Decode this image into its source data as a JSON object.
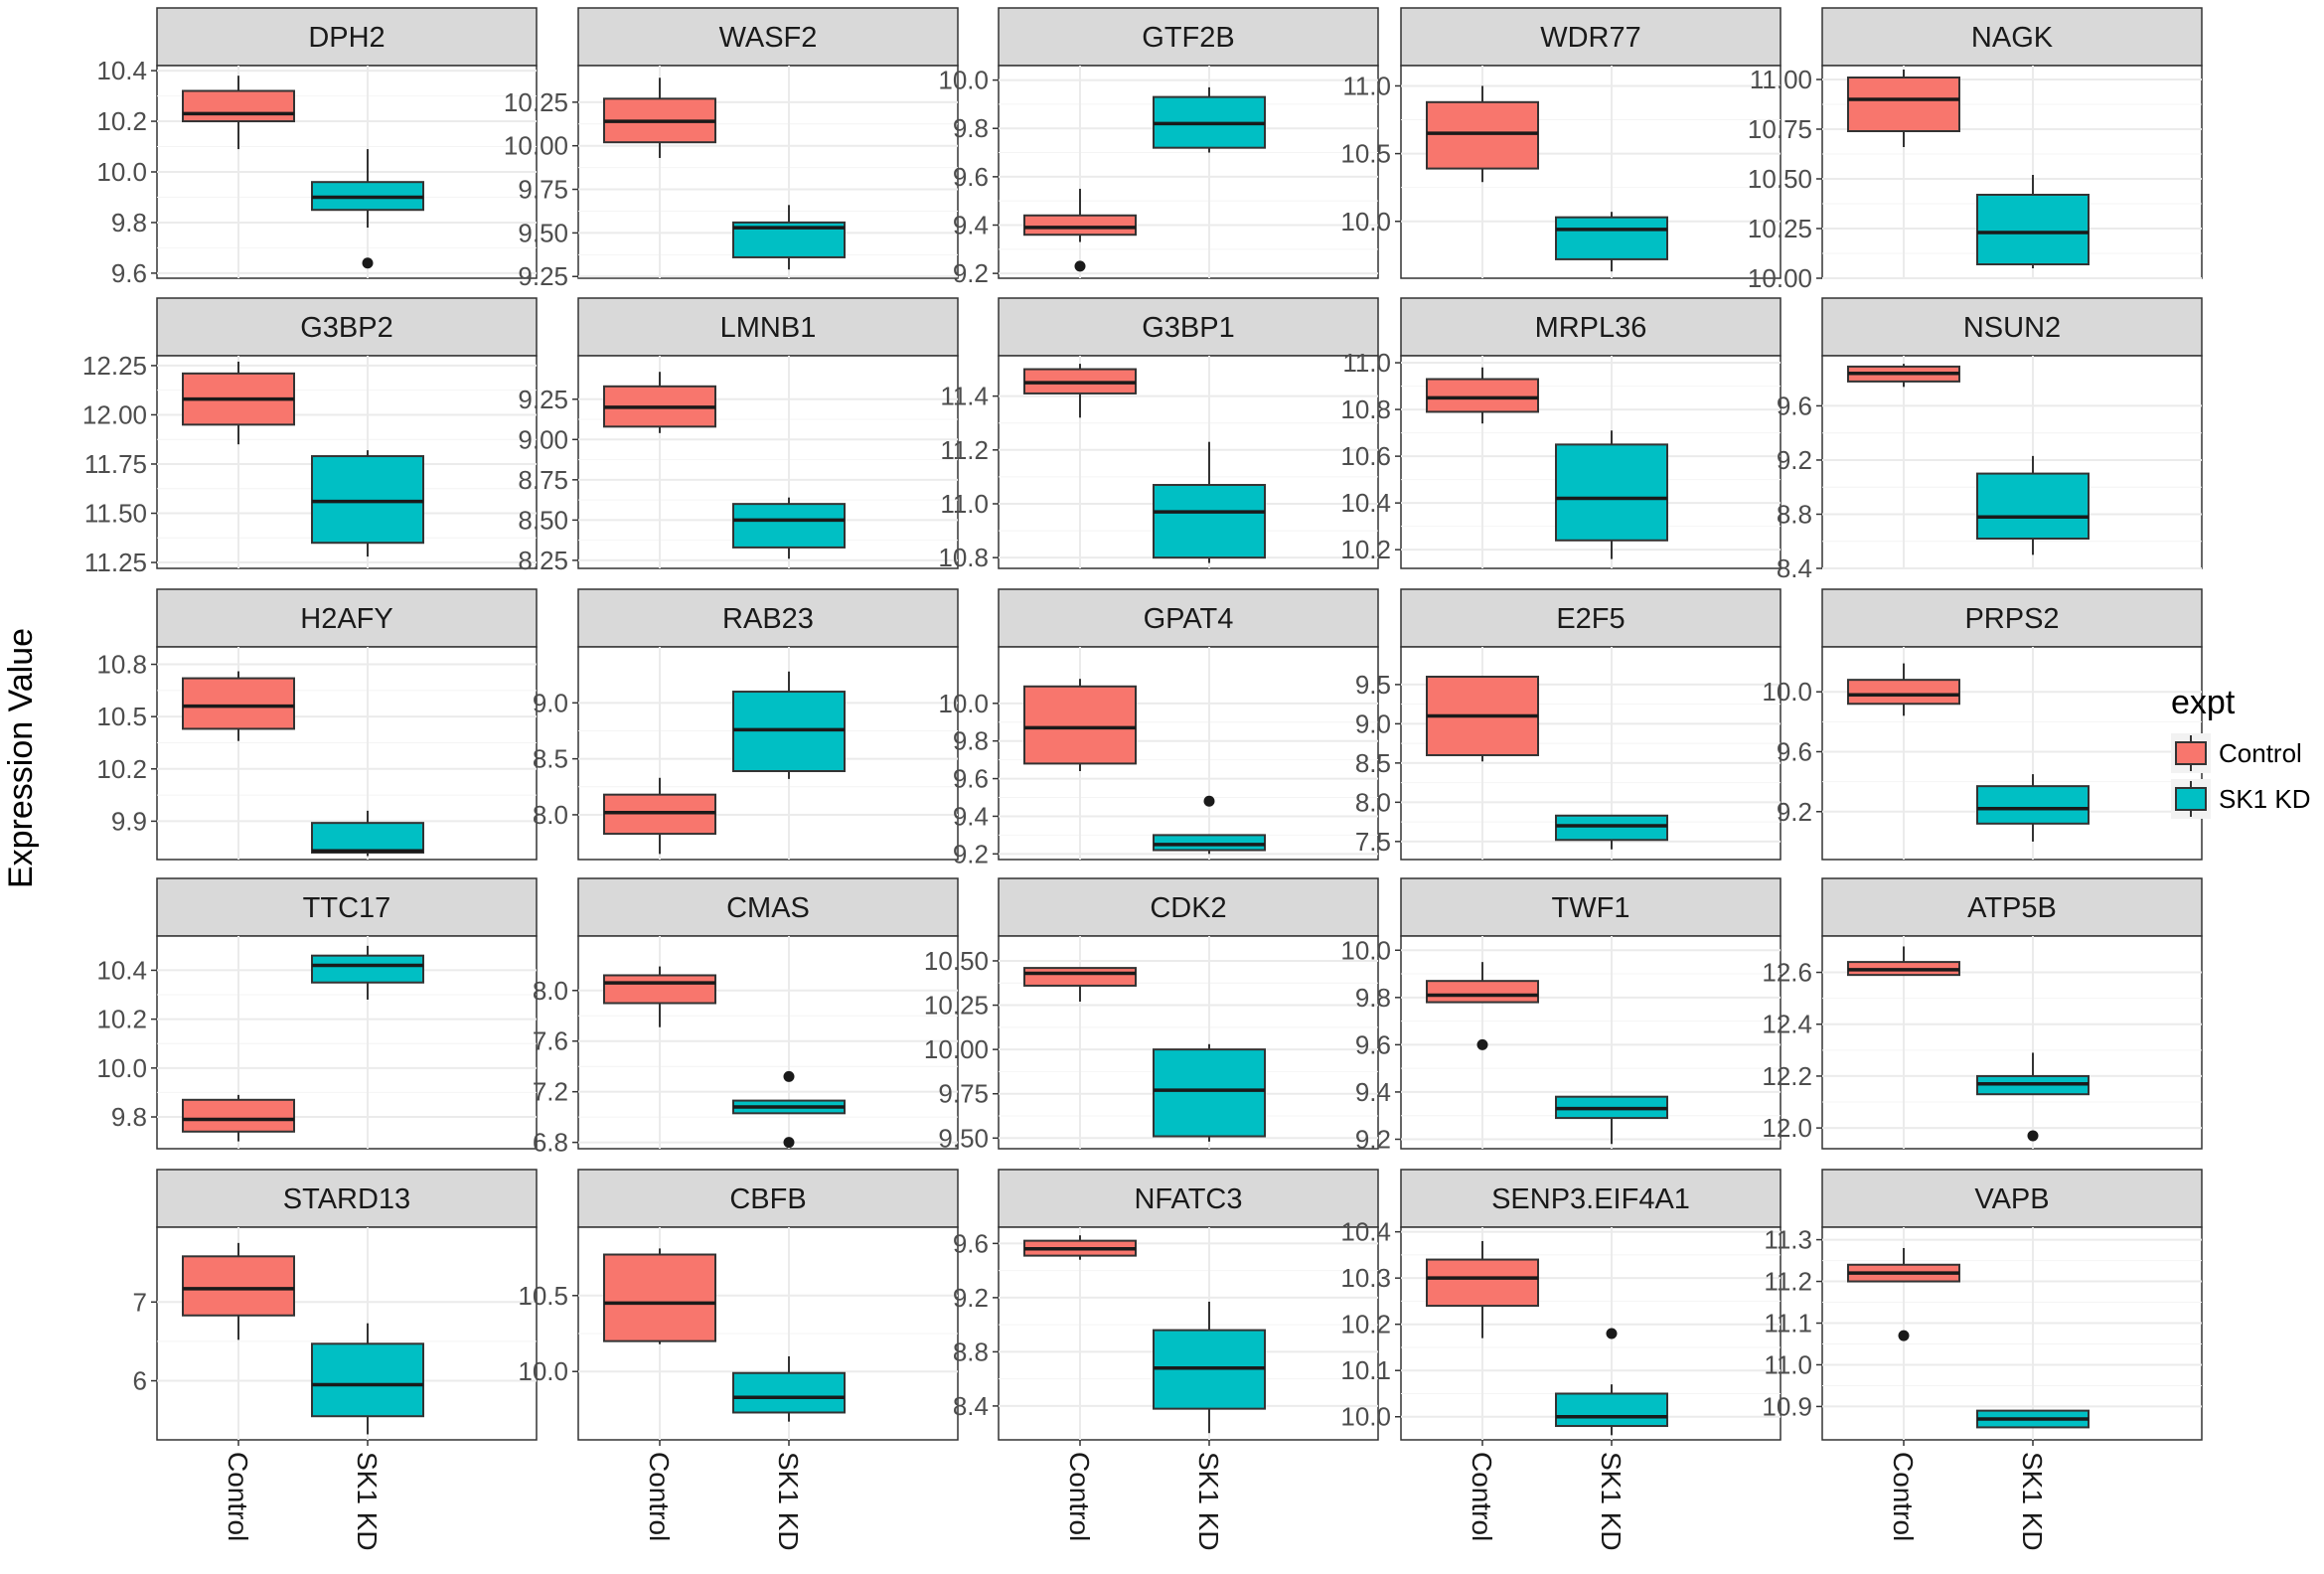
{
  "chart_data": {
    "type": "boxplot",
    "ylabel": "Expression Value",
    "categories": [
      "Control",
      "SK1 KD"
    ],
    "legend": {
      "title": "expt",
      "position": "right",
      "entries": [
        {
          "name": "Control",
          "color": "#F8766D"
        },
        {
          "name": "SK1 KD",
          "color": "#00BFC4"
        }
      ]
    },
    "panels": [
      {
        "gene": "DPH2",
        "ylim": [
          9.58,
          10.42
        ],
        "ticks": [
          9.6,
          9.8,
          10.0,
          10.2,
          10.4
        ],
        "tick_labels": [
          "9.6",
          "9.8",
          "10.0",
          "10.2",
          "10.4"
        ],
        "boxes": [
          {
            "group": "Control",
            "min": 10.09,
            "q1": 10.2,
            "median": 10.23,
            "q3": 10.32,
            "max": 10.38,
            "outliers": []
          },
          {
            "group": "SK1 KD",
            "min": 9.78,
            "q1": 9.85,
            "median": 9.9,
            "q3": 9.96,
            "max": 10.09,
            "outliers": [
              9.64
            ]
          }
        ]
      },
      {
        "gene": "WASF2",
        "ylim": [
          9.24,
          10.46
        ],
        "ticks": [
          9.25,
          9.5,
          9.75,
          10.0,
          10.25
        ],
        "tick_labels": [
          "9.25",
          "9.50",
          "9.75",
          "10.00",
          "10.25"
        ],
        "boxes": [
          {
            "group": "Control",
            "min": 9.93,
            "q1": 10.02,
            "median": 10.14,
            "q3": 10.27,
            "max": 10.39,
            "outliers": []
          },
          {
            "group": "SK1 KD",
            "min": 9.29,
            "q1": 9.36,
            "median": 9.53,
            "q3": 9.56,
            "max": 9.66,
            "outliers": []
          }
        ]
      },
      {
        "gene": "GTF2B",
        "ylim": [
          9.18,
          10.06
        ],
        "ticks": [
          9.2,
          9.4,
          9.6,
          9.8,
          10.0
        ],
        "tick_labels": [
          "9.2",
          "9.4",
          "9.6",
          "9.8",
          "10.0"
        ],
        "boxes": [
          {
            "group": "Control",
            "min": 9.33,
            "q1": 9.36,
            "median": 9.39,
            "q3": 9.44,
            "max": 9.55,
            "outliers": [
              9.23
            ]
          },
          {
            "group": "SK1 KD",
            "min": 9.7,
            "q1": 9.72,
            "median": 9.82,
            "q3": 9.93,
            "max": 9.97,
            "outliers": []
          }
        ]
      },
      {
        "gene": "WDR77",
        "ylim": [
          9.58,
          11.15
        ],
        "ticks": [
          10.0,
          10.5,
          11.0
        ],
        "tick_labels": [
          "10.0",
          "10.5",
          "11.0"
        ],
        "boxes": [
          {
            "group": "Control",
            "min": 10.29,
            "q1": 10.39,
            "median": 10.65,
            "q3": 10.88,
            "max": 11.0,
            "outliers": []
          },
          {
            "group": "SK1 KD",
            "min": 9.63,
            "q1": 9.72,
            "median": 9.94,
            "q3": 10.03,
            "max": 10.07,
            "outliers": []
          }
        ]
      },
      {
        "gene": "NAGK",
        "ylim": [
          10.0,
          11.07
        ],
        "ticks": [
          10.0,
          10.25,
          10.5,
          10.75,
          11.0
        ],
        "tick_labels": [
          "10.00",
          "10.25",
          "10.50",
          "10.75",
          "11.00"
        ],
        "boxes": [
          {
            "group": "Control",
            "min": 10.66,
            "q1": 10.74,
            "median": 10.9,
            "q3": 11.01,
            "max": 11.05,
            "outliers": []
          },
          {
            "group": "SK1 KD",
            "min": 10.05,
            "q1": 10.07,
            "median": 10.23,
            "q3": 10.42,
            "max": 10.52,
            "outliers": []
          }
        ]
      },
      {
        "gene": "G3BP2",
        "ylim": [
          11.22,
          12.3
        ],
        "ticks": [
          11.25,
          11.5,
          11.75,
          12.0,
          12.25
        ],
        "tick_labels": [
          "11.25",
          "11.50",
          "11.75",
          "12.00",
          "12.25"
        ],
        "boxes": [
          {
            "group": "Control",
            "min": 11.85,
            "q1": 11.95,
            "median": 12.08,
            "q3": 12.21,
            "max": 12.27,
            "outliers": []
          },
          {
            "group": "SK1 KD",
            "min": 11.28,
            "q1": 11.35,
            "median": 11.56,
            "q3": 11.79,
            "max": 11.82,
            "outliers": []
          }
        ]
      },
      {
        "gene": "LMNB1",
        "ylim": [
          8.2,
          9.52
        ],
        "ticks": [
          8.25,
          8.5,
          8.75,
          9.0,
          9.25
        ],
        "tick_labels": [
          "8.25",
          "8.50",
          "8.75",
          "9.00",
          "9.25"
        ],
        "boxes": [
          {
            "group": "Control",
            "min": 9.04,
            "q1": 9.08,
            "median": 9.2,
            "q3": 9.33,
            "max": 9.42,
            "outliers": []
          },
          {
            "group": "SK1 KD",
            "min": 8.26,
            "q1": 8.33,
            "median": 8.5,
            "q3": 8.6,
            "max": 8.64,
            "outliers": []
          }
        ]
      },
      {
        "gene": "G3BP1",
        "ylim": [
          10.76,
          11.55
        ],
        "ticks": [
          10.8,
          11.0,
          11.2,
          11.4
        ],
        "tick_labels": [
          "10.8",
          "11.0",
          "11.2",
          "11.4"
        ],
        "boxes": [
          {
            "group": "Control",
            "min": 11.32,
            "q1": 11.41,
            "median": 11.45,
            "q3": 11.5,
            "max": 11.52,
            "outliers": []
          },
          {
            "group": "SK1 KD",
            "min": 10.78,
            "q1": 10.8,
            "median": 10.97,
            "q3": 11.07,
            "max": 11.23,
            "outliers": []
          }
        ]
      },
      {
        "gene": "MRPL36",
        "ylim": [
          10.12,
          11.03
        ],
        "ticks": [
          10.2,
          10.4,
          10.6,
          10.8,
          11.0
        ],
        "tick_labels": [
          "10.2",
          "10.4",
          "10.6",
          "10.8",
          "11.0"
        ],
        "boxes": [
          {
            "group": "Control",
            "min": 10.74,
            "q1": 10.79,
            "median": 10.85,
            "q3": 10.93,
            "max": 10.98,
            "outliers": []
          },
          {
            "group": "SK1 KD",
            "min": 10.16,
            "q1": 10.24,
            "median": 10.42,
            "q3": 10.65,
            "max": 10.71,
            "outliers": []
          }
        ]
      },
      {
        "gene": "NSUN2",
        "ylim": [
          8.4,
          9.97
        ],
        "ticks": [
          8.4,
          8.8,
          9.2,
          9.6
        ],
        "tick_labels": [
          "8.4",
          "8.8",
          "9.2",
          "9.6"
        ],
        "boxes": [
          {
            "group": "Control",
            "min": 9.74,
            "q1": 9.78,
            "median": 9.84,
            "q3": 9.89,
            "max": 9.91,
            "outliers": []
          },
          {
            "group": "SK1 KD",
            "min": 8.5,
            "q1": 8.62,
            "median": 8.78,
            "q3": 9.1,
            "max": 9.23,
            "outliers": []
          }
        ]
      },
      {
        "gene": "H2AFY",
        "ylim": [
          9.68,
          10.9
        ],
        "ticks": [
          9.9,
          10.2,
          10.5,
          10.8
        ],
        "tick_labels": [
          "9.9",
          "10.2",
          "10.5",
          "10.8"
        ],
        "boxes": [
          {
            "group": "Control",
            "min": 10.36,
            "q1": 10.43,
            "median": 10.56,
            "q3": 10.72,
            "max": 10.76,
            "outliers": []
          },
          {
            "group": "SK1 KD",
            "min": 9.7,
            "q1": 9.72,
            "median": 9.73,
            "q3": 9.89,
            "max": 9.96,
            "outliers": []
          }
        ]
      },
      {
        "gene": "RAB23",
        "ylim": [
          7.6,
          9.5
        ],
        "ticks": [
          8.0,
          8.5,
          9.0
        ],
        "tick_labels": [
          "8.0",
          "8.5",
          "9.0"
        ],
        "boxes": [
          {
            "group": "Control",
            "min": 7.65,
            "q1": 7.83,
            "median": 8.02,
            "q3": 8.18,
            "max": 8.33,
            "outliers": []
          },
          {
            "group": "SK1 KD",
            "min": 8.32,
            "q1": 8.39,
            "median": 8.76,
            "q3": 9.1,
            "max": 9.28,
            "outliers": []
          }
        ]
      },
      {
        "gene": "GPAT4",
        "ylim": [
          9.17,
          10.3
        ],
        "ticks": [
          9.2,
          9.4,
          9.6,
          9.8,
          10.0
        ],
        "tick_labels": [
          "9.2",
          "9.4",
          "9.6",
          "9.8",
          "10.0"
        ],
        "boxes": [
          {
            "group": "Control",
            "min": 9.64,
            "q1": 9.68,
            "median": 9.87,
            "q3": 10.09,
            "max": 10.13,
            "outliers": []
          },
          {
            "group": "SK1 KD",
            "min": 9.2,
            "q1": 9.22,
            "median": 9.25,
            "q3": 9.3,
            "max": 9.3,
            "outliers": [
              9.48
            ]
          }
        ]
      },
      {
        "gene": "E2F5",
        "ylim": [
          7.27,
          9.98
        ],
        "ticks": [
          7.5,
          8.0,
          8.5,
          9.0,
          9.5
        ],
        "tick_labels": [
          "7.5",
          "8.0",
          "8.5",
          "9.0",
          "9.5"
        ],
        "boxes": [
          {
            "group": "Control",
            "min": 8.52,
            "q1": 8.6,
            "median": 9.1,
            "q3": 9.6,
            "max": 9.6,
            "outliers": []
          },
          {
            "group": "SK1 KD",
            "min": 7.4,
            "q1": 7.52,
            "median": 7.7,
            "q3": 7.83,
            "max": 7.83,
            "outliers": []
          }
        ]
      },
      {
        "gene": "PRPS2",
        "ylim": [
          8.88,
          10.3
        ],
        "ticks": [
          9.2,
          9.6,
          10.0
        ],
        "tick_labels": [
          "9.2",
          "9.6",
          "10.0"
        ],
        "boxes": [
          {
            "group": "Control",
            "min": 9.84,
            "q1": 9.92,
            "median": 9.98,
            "q3": 10.08,
            "max": 10.19,
            "outliers": []
          },
          {
            "group": "SK1 KD",
            "min": 9.0,
            "q1": 9.12,
            "median": 9.22,
            "q3": 9.37,
            "max": 9.45,
            "outliers": []
          }
        ]
      },
      {
        "gene": "TTC17",
        "ylim": [
          9.67,
          10.54
        ],
        "ticks": [
          9.8,
          10.0,
          10.2,
          10.4
        ],
        "tick_labels": [
          "9.8",
          "10.0",
          "10.2",
          "10.4"
        ],
        "boxes": [
          {
            "group": "Control",
            "min": 9.7,
            "q1": 9.74,
            "median": 9.79,
            "q3": 9.87,
            "max": 9.89,
            "outliers": []
          },
          {
            "group": "SK1 KD",
            "min": 10.28,
            "q1": 10.35,
            "median": 10.42,
            "q3": 10.46,
            "max": 10.5,
            "outliers": []
          }
        ]
      },
      {
        "gene": "CMAS",
        "ylim": [
          6.75,
          8.43
        ],
        "ticks": [
          6.8,
          7.2,
          7.6,
          8.0
        ],
        "tick_labels": [
          "6.8",
          "7.2",
          "7.6",
          "8.0"
        ],
        "boxes": [
          {
            "group": "Control",
            "min": 7.71,
            "q1": 7.9,
            "median": 8.06,
            "q3": 8.12,
            "max": 8.19,
            "outliers": []
          },
          {
            "group": "SK1 KD",
            "min": 7.03,
            "q1": 7.03,
            "median": 7.08,
            "q3": 7.13,
            "max": 7.13,
            "outliers": [
              7.32,
              6.8
            ]
          }
        ]
      },
      {
        "gene": "CDK2",
        "ylim": [
          9.44,
          10.64
        ],
        "ticks": [
          9.5,
          9.75,
          10.0,
          10.25,
          10.5
        ],
        "tick_labels": [
          "9.50",
          "9.75",
          "10.00",
          "10.25",
          "10.50"
        ],
        "boxes": [
          {
            "group": "Control",
            "min": 10.27,
            "q1": 10.36,
            "median": 10.43,
            "q3": 10.46,
            "max": 10.46,
            "outliers": []
          },
          {
            "group": "SK1 KD",
            "min": 9.48,
            "q1": 9.51,
            "median": 9.77,
            "q3": 10.0,
            "max": 10.03,
            "outliers": []
          }
        ]
      },
      {
        "gene": "TWF1",
        "ylim": [
          9.16,
          10.06
        ],
        "ticks": [
          9.2,
          9.4,
          9.6,
          9.8,
          10.0
        ],
        "tick_labels": [
          "9.2",
          "9.4",
          "9.6",
          "9.8",
          "10.0"
        ],
        "boxes": [
          {
            "group": "Control",
            "min": 9.78,
            "q1": 9.78,
            "median": 9.81,
            "q3": 9.87,
            "max": 9.95,
            "outliers": [
              9.6
            ]
          },
          {
            "group": "SK1 KD",
            "min": 9.18,
            "q1": 9.29,
            "median": 9.33,
            "q3": 9.38,
            "max": 9.38,
            "outliers": []
          }
        ]
      },
      {
        "gene": "ATP5B",
        "ylim": [
          11.92,
          12.74
        ],
        "ticks": [
          12.0,
          12.2,
          12.4,
          12.6
        ],
        "tick_labels": [
          "12.0",
          "12.2",
          "12.4",
          "12.6"
        ],
        "boxes": [
          {
            "group": "Control",
            "min": 12.59,
            "q1": 12.59,
            "median": 12.61,
            "q3": 12.64,
            "max": 12.7,
            "outliers": []
          },
          {
            "group": "SK1 KD",
            "min": 12.13,
            "q1": 12.13,
            "median": 12.17,
            "q3": 12.2,
            "max": 12.29,
            "outliers": [
              11.97
            ]
          }
        ]
      },
      {
        "gene": "STARD13",
        "ylim": [
          5.25,
          7.95
        ],
        "ticks": [
          6.0,
          7.0
        ],
        "tick_labels": [
          "6",
          "7"
        ],
        "boxes": [
          {
            "group": "Control",
            "min": 6.52,
            "q1": 6.83,
            "median": 7.17,
            "q3": 7.58,
            "max": 7.75,
            "outliers": []
          },
          {
            "group": "SK1 KD",
            "min": 5.32,
            "q1": 5.55,
            "median": 5.95,
            "q3": 6.47,
            "max": 6.73,
            "outliers": []
          }
        ]
      },
      {
        "gene": "CBFB",
        "ylim": [
          9.55,
          10.95
        ],
        "ticks": [
          10.0,
          10.5
        ],
        "tick_labels": [
          "10.0",
          "10.5"
        ],
        "boxes": [
          {
            "group": "Control",
            "min": 10.18,
            "q1": 10.2,
            "median": 10.45,
            "q3": 10.77,
            "max": 10.81,
            "outliers": []
          },
          {
            "group": "SK1 KD",
            "min": 9.67,
            "q1": 9.73,
            "median": 9.83,
            "q3": 9.99,
            "max": 10.1,
            "outliers": []
          }
        ]
      },
      {
        "gene": "NFATC3",
        "ylim": [
          8.15,
          9.72
        ],
        "ticks": [
          8.4,
          8.8,
          9.2,
          9.6
        ],
        "tick_labels": [
          "8.4",
          "8.8",
          "9.2",
          "9.6"
        ],
        "boxes": [
          {
            "group": "Control",
            "min": 9.48,
            "q1": 9.51,
            "median": 9.56,
            "q3": 9.62,
            "max": 9.66,
            "outliers": []
          },
          {
            "group": "SK1 KD",
            "min": 8.2,
            "q1": 8.38,
            "median": 8.68,
            "q3": 8.96,
            "max": 9.17,
            "outliers": []
          }
        ]
      },
      {
        "gene": "SENP3.EIF4A1",
        "ylim": [
          9.95,
          10.41
        ],
        "ticks": [
          10.0,
          10.1,
          10.2,
          10.3,
          10.4
        ],
        "tick_labels": [
          "10.0",
          "10.1",
          "10.2",
          "10.3",
          "10.4"
        ],
        "boxes": [
          {
            "group": "Control",
            "min": 10.17,
            "q1": 10.24,
            "median": 10.3,
            "q3": 10.34,
            "max": 10.38,
            "outliers": []
          },
          {
            "group": "SK1 KD",
            "min": 9.96,
            "q1": 9.98,
            "median": 10.0,
            "q3": 10.05,
            "max": 10.07,
            "outliers": [
              10.18
            ]
          }
        ]
      },
      {
        "gene": "VAPB",
        "ylim": [
          10.82,
          11.33
        ],
        "ticks": [
          10.9,
          11.0,
          11.1,
          11.2,
          11.3
        ],
        "tick_labels": [
          "10.9",
          "11.0",
          "11.1",
          "11.2",
          "11.3"
        ],
        "boxes": [
          {
            "group": "Control",
            "min": 11.2,
            "q1": 11.2,
            "median": 11.22,
            "q3": 11.24,
            "max": 11.28,
            "outliers": [
              11.07
            ]
          },
          {
            "group": "SK1 KD",
            "min": 10.85,
            "q1": 10.85,
            "median": 10.87,
            "q3": 10.89,
            "max": 10.89,
            "outliers": []
          }
        ]
      }
    ]
  }
}
